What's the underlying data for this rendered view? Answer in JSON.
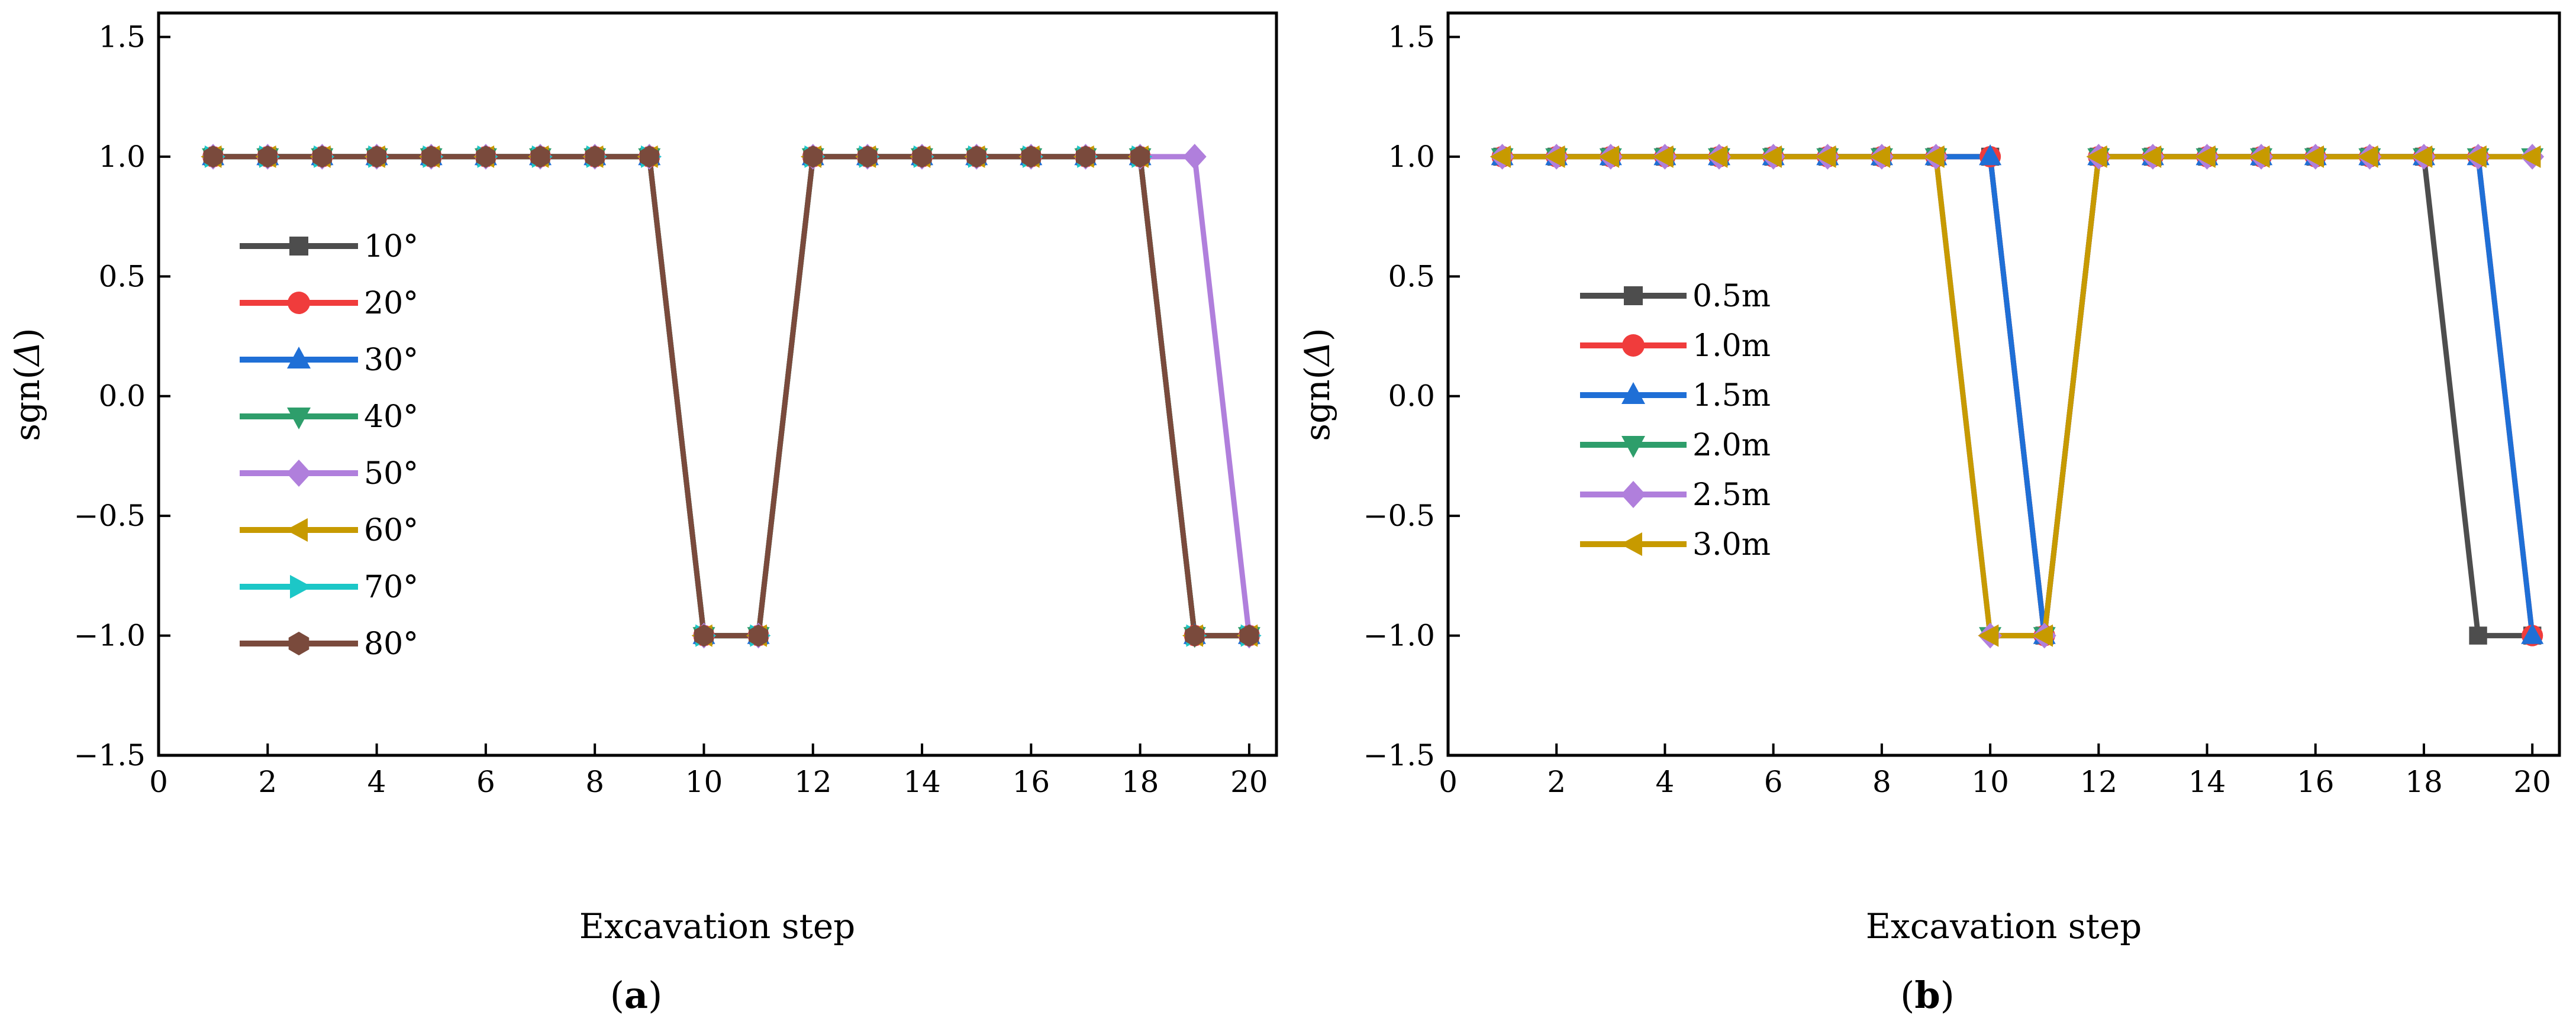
{
  "chart_data": [
    {
      "type": "line",
      "caption_open": "(",
      "caption_letter": "a",
      "caption_close": ")",
      "xlabel": "Excavation step",
      "ylabel_prefix": "sgn(",
      "ylabel_symbol": "Δ",
      "ylabel_suffix": ")",
      "xlim": [
        0,
        20.5
      ],
      "ylim": [
        -1.5,
        1.6
      ],
      "xticks": [
        0,
        2,
        4,
        6,
        8,
        10,
        12,
        14,
        16,
        18,
        20
      ],
      "xtick_labels": [
        "0",
        "2",
        "4",
        "6",
        "8",
        "10",
        "12",
        "14",
        "16",
        "18",
        "20"
      ],
      "yticks": [
        -1.5,
        -1.0,
        -0.5,
        0.0,
        0.5,
        1.0,
        1.5
      ],
      "ytick_labels": [
        "−1.5",
        "−1.0",
        "−0.5",
        "0.0",
        "0.5",
        "1.0",
        "1.5"
      ],
      "legend_position": "left",
      "x": [
        1,
        2,
        3,
        4,
        5,
        6,
        7,
        8,
        9,
        10,
        11,
        12,
        13,
        14,
        15,
        16,
        17,
        18,
        19,
        20
      ],
      "series": [
        {
          "name": "10°",
          "color": "#4d4d4d",
          "marker": "square",
          "values": [
            1,
            1,
            1,
            1,
            1,
            1,
            1,
            1,
            1,
            -1,
            -1,
            1,
            1,
            1,
            1,
            1,
            1,
            1,
            -1,
            -1
          ]
        },
        {
          "name": "20°",
          "color": "#f03c3c",
          "marker": "circle",
          "values": [
            1,
            1,
            1,
            1,
            1,
            1,
            1,
            1,
            1,
            -1,
            -1,
            1,
            1,
            1,
            1,
            1,
            1,
            1,
            -1,
            -1
          ]
        },
        {
          "name": "30°",
          "color": "#1f6fd6",
          "marker": "triangle-up",
          "values": [
            1,
            1,
            1,
            1,
            1,
            1,
            1,
            1,
            1,
            -1,
            -1,
            1,
            1,
            1,
            1,
            1,
            1,
            1,
            -1,
            -1
          ]
        },
        {
          "name": "40°",
          "color": "#2e9e6b",
          "marker": "triangle-down",
          "values": [
            1,
            1,
            1,
            1,
            1,
            1,
            1,
            1,
            1,
            -1,
            -1,
            1,
            1,
            1,
            1,
            1,
            1,
            1,
            -1,
            -1
          ]
        },
        {
          "name": "50°",
          "color": "#b07fdc",
          "marker": "diamond",
          "values": [
            1,
            1,
            1,
            1,
            1,
            1,
            1,
            1,
            1,
            -1,
            -1,
            1,
            1,
            1,
            1,
            1,
            1,
            1,
            1,
            -1
          ]
        },
        {
          "name": "60°",
          "color": "#c79a00",
          "marker": "triangle-left",
          "values": [
            1,
            1,
            1,
            1,
            1,
            1,
            1,
            1,
            1,
            -1,
            -1,
            1,
            1,
            1,
            1,
            1,
            1,
            1,
            -1,
            -1
          ]
        },
        {
          "name": "70°",
          "color": "#1cc7c7",
          "marker": "triangle-right",
          "values": [
            1,
            1,
            1,
            1,
            1,
            1,
            1,
            1,
            1,
            -1,
            -1,
            1,
            1,
            1,
            1,
            1,
            1,
            1,
            -1,
            -1
          ]
        },
        {
          "name": "80°",
          "color": "#7a4a3c",
          "marker": "hexagon",
          "values": [
            1,
            1,
            1,
            1,
            1,
            1,
            1,
            1,
            1,
            -1,
            -1,
            1,
            1,
            1,
            1,
            1,
            1,
            1,
            -1,
            -1
          ]
        }
      ]
    },
    {
      "type": "line",
      "caption_open": "(",
      "caption_letter": "b",
      "caption_close": ")",
      "xlabel": "Excavation step",
      "ylabel_prefix": "sgn(",
      "ylabel_symbol": "Δ",
      "ylabel_suffix": ")",
      "xlim": [
        0,
        20.5
      ],
      "ylim": [
        -1.5,
        1.6
      ],
      "xticks": [
        0,
        2,
        4,
        6,
        8,
        10,
        12,
        14,
        16,
        18,
        20
      ],
      "xtick_labels": [
        "0",
        "2",
        "4",
        "6",
        "8",
        "10",
        "12",
        "14",
        "16",
        "18",
        "20"
      ],
      "yticks": [
        -1.5,
        -1.0,
        -0.5,
        0.0,
        0.5,
        1.0,
        1.5
      ],
      "ytick_labels": [
        "−1.5",
        "−1.0",
        "−0.5",
        "0.0",
        "0.5",
        "1.0",
        "1.5"
      ],
      "legend_position": "left",
      "x": [
        1,
        2,
        3,
        4,
        5,
        6,
        7,
        8,
        9,
        10,
        11,
        12,
        13,
        14,
        15,
        16,
        17,
        18,
        19,
        20
      ],
      "series": [
        {
          "name": "0.5m",
          "color": "#4d4d4d",
          "marker": "square",
          "values": [
            1,
            1,
            1,
            1,
            1,
            1,
            1,
            1,
            1,
            1,
            -1,
            1,
            1,
            1,
            1,
            1,
            1,
            1,
            -1,
            -1
          ]
        },
        {
          "name": "1.0m",
          "color": "#f03c3c",
          "marker": "circle",
          "values": [
            1,
            1,
            1,
            1,
            1,
            1,
            1,
            1,
            1,
            1,
            -1,
            1,
            1,
            1,
            1,
            1,
            1,
            1,
            1,
            -1
          ]
        },
        {
          "name": "1.5m",
          "color": "#1f6fd6",
          "marker": "triangle-up",
          "values": [
            1,
            1,
            1,
            1,
            1,
            1,
            1,
            1,
            1,
            1,
            -1,
            1,
            1,
            1,
            1,
            1,
            1,
            1,
            1,
            -1
          ]
        },
        {
          "name": "2.0m",
          "color": "#2e9e6b",
          "marker": "triangle-down",
          "values": [
            1,
            1,
            1,
            1,
            1,
            1,
            1,
            1,
            1,
            -1,
            -1,
            1,
            1,
            1,
            1,
            1,
            1,
            1,
            1,
            1
          ]
        },
        {
          "name": "2.5m",
          "color": "#b07fdc",
          "marker": "diamond",
          "values": [
            1,
            1,
            1,
            1,
            1,
            1,
            1,
            1,
            1,
            -1,
            -1,
            1,
            1,
            1,
            1,
            1,
            1,
            1,
            1,
            1
          ]
        },
        {
          "name": "3.0m",
          "color": "#c79a00",
          "marker": "triangle-left",
          "values": [
            1,
            1,
            1,
            1,
            1,
            1,
            1,
            1,
            1,
            -1,
            -1,
            1,
            1,
            1,
            1,
            1,
            1,
            1,
            1,
            1
          ]
        }
      ]
    }
  ]
}
